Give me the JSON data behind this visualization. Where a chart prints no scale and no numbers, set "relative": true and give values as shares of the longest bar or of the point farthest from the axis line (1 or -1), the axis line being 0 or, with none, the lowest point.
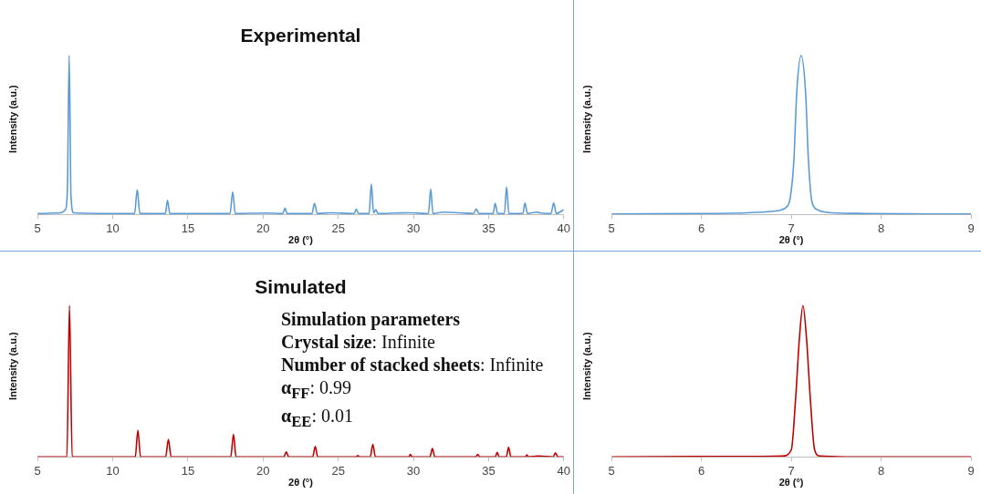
{
  "chart_data": [
    {
      "type": "line",
      "title": "Experimental",
      "xlabel": "2θ (°)",
      "ylabel": "Intensity (a.u.)",
      "relative": true,
      "xlim": [
        5,
        40
      ],
      "xticks": [
        5,
        10,
        15,
        20,
        25,
        30,
        35,
        40
      ],
      "legend": false,
      "grid": false,
      "x": [
        5,
        6.5,
        6.85,
        6.98,
        7.1,
        7.22,
        7.4,
        11.45,
        11.63,
        11.8,
        13.5,
        13.64,
        13.8,
        17.8,
        17.98,
        18.15,
        20.2,
        21.3,
        21.46,
        21.6,
        23.25,
        23.42,
        23.6,
        24.5,
        26.05,
        26.2,
        26.35,
        27.05,
        27.2,
        27.35,
        27.5,
        27.65,
        28.8,
        29.7,
        31.0,
        31.15,
        31.3,
        32.0,
        34.0,
        34.18,
        34.35,
        35.3,
        35.44,
        35.6,
        36.05,
        36.2,
        36.35,
        37.28,
        37.42,
        37.58,
        38.2,
        38.4,
        39.15,
        39.33,
        39.5,
        40
      ],
      "series": [
        {
          "color": "#5b9bd5",
          "values": [
            0.005,
            0.01,
            0.03,
            0.15,
            1,
            0.12,
            0.01,
            0.005,
            0.156,
            0.005,
            0.005,
            0.088,
            0.005,
            0.005,
            0.141,
            0.005,
            0.008,
            0.005,
            0.038,
            0.005,
            0.005,
            0.07,
            0.005,
            0.01,
            0.005,
            0.032,
            0.005,
            0.005,
            0.19,
            0.01,
            0.029,
            0.005,
            0.008,
            0.01,
            0.005,
            0.16,
            0.005,
            0.014,
            0.005,
            0.034,
            0.005,
            0.005,
            0.07,
            0.005,
            0.005,
            0.173,
            0.005,
            0.005,
            0.072,
            0.005,
            0.014,
            0.01,
            0.005,
            0.072,
            0.005,
            0.03
          ]
        }
      ]
    },
    {
      "type": "line",
      "xlabel": "2θ (°)",
      "ylabel": "Intensity (a.u.)",
      "relative": true,
      "xlim": [
        5,
        9
      ],
      "xticks": [
        5,
        6,
        7,
        8,
        9
      ],
      "legend": false,
      "grid": false,
      "x": [
        5,
        6.0,
        6.5,
        6.8,
        6.95,
        6.99,
        7.03,
        7.06,
        7.11,
        7.16,
        7.19,
        7.23,
        7.29,
        7.4,
        7.72,
        8.5,
        9
      ],
      "series": [
        {
          "color": "#5b9bd5",
          "values": [
            0.003,
            0.005,
            0.01,
            0.02,
            0.048,
            0.11,
            0.35,
            0.76,
            1,
            0.76,
            0.35,
            0.08,
            0.03,
            0.013,
            0.006,
            0.003,
            0.002
          ]
        }
      ]
    },
    {
      "type": "line",
      "title": "Simulated",
      "xlabel": "2θ (°)",
      "ylabel": "Intensity (a.u.)",
      "relative": true,
      "xlim": [
        5,
        40
      ],
      "xticks": [
        5,
        10,
        15,
        20,
        25,
        30,
        35,
        40
      ],
      "legend": false,
      "grid": false,
      "annotations": [
        "Simulation parameters",
        "Crystal size: Infinite",
        "Number of stacked sheets: Infinite",
        "α$_{FF}$: 0.99",
        "α$_{EE}$: 0.01"
      ],
      "x": [
        5,
        6.95,
        7.12,
        7.3,
        11.5,
        11.67,
        11.85,
        13.52,
        13.7,
        13.88,
        17.85,
        18.03,
        18.2,
        21.38,
        21.54,
        21.7,
        23.3,
        23.47,
        23.63,
        26.2,
        26.3,
        26.4,
        27.13,
        27.3,
        27.47,
        29.7,
        29.8,
        29.9,
        31.1,
        31.26,
        31.42,
        34.15,
        34.28,
        34.4,
        35.45,
        35.57,
        35.7,
        36.18,
        36.33,
        36.48,
        37.45,
        37.55,
        37.65,
        38.3,
        39.3,
        39.45,
        39.6,
        40
      ],
      "series": [
        {
          "color": "#c00000",
          "values": [
            0,
            0,
            1,
            0,
            0,
            0.176,
            0,
            0,
            0.115,
            0,
            0,
            0.148,
            0,
            0,
            0.033,
            0,
            0,
            0.068,
            0,
            0,
            0.009,
            0,
            0,
            0.082,
            0,
            0,
            0.016,
            0,
            0,
            0.055,
            0,
            0,
            0.016,
            0,
            0,
            0.029,
            0,
            0,
            0.062,
            0,
            0,
            0.013,
            0,
            0.005,
            0,
            0.026,
            0,
            0
          ]
        }
      ]
    },
    {
      "type": "line",
      "xlabel": "2θ (°)",
      "ylabel": "Intensity (a.u.)",
      "relative": true,
      "xlim": [
        5,
        9
      ],
      "xticks": [
        5,
        6,
        7,
        8,
        9
      ],
      "legend": false,
      "grid": false,
      "x": [
        5,
        6.6,
        6.9,
        7.0,
        7.05,
        7.09,
        7.13,
        7.17,
        7.21,
        7.26,
        7.32,
        7.6,
        9
      ],
      "series": [
        {
          "color": "#c00000",
          "values": [
            0,
            0.003,
            0.005,
            0.045,
            0.4,
            0.78,
            1,
            0.78,
            0.4,
            0.045,
            0.005,
            0,
            0
          ]
        }
      ]
    }
  ]
}
